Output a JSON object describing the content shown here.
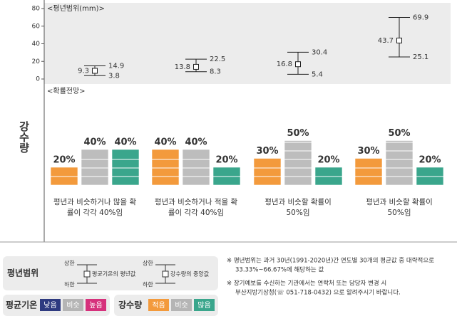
{
  "side_label": "강수량",
  "chart_data": {
    "type": "errorbar",
    "label": "<평년범위(mm)>",
    "ylim": [
      0,
      80
    ],
    "yticks": [
      0,
      20,
      40,
      60,
      80
    ],
    "values": [
      9.3,
      13.8,
      16.8,
      43.7
    ],
    "low": [
      3.8,
      8.3,
      5.4,
      25.1
    ],
    "high": [
      14.9,
      22.5,
      30.4,
      69.9
    ]
  },
  "probability": {
    "label": "<확률전망>",
    "colors": [
      "#f39a3c",
      "#bdbdbd",
      "#3aa68c"
    ],
    "groups": [
      {
        "values": [
          20,
          40,
          40
        ],
        "value_labels": [
          "20%",
          "40%",
          "40%"
        ],
        "caption": [
          "평년과 비슷하거나 많을 확",
          "률이 각각 40%임"
        ]
      },
      {
        "values": [
          40,
          40,
          20
        ],
        "value_labels": [
          "40%",
          "40%",
          "20%"
        ],
        "caption": [
          "평년과 비슷하거나 적을 확",
          "률이 각각 40%임"
        ]
      },
      {
        "values": [
          30,
          50,
          20
        ],
        "value_labels": [
          "30%",
          "50%",
          "20%"
        ],
        "caption": [
          "평년과 비슷할 확률이",
          "50%임"
        ]
      },
      {
        "values": [
          30,
          50,
          20
        ],
        "value_labels": [
          "30%",
          "50%",
          "20%"
        ],
        "caption": [
          "평년과 비슷할 확률이",
          "50%임"
        ]
      }
    ]
  },
  "legend": {
    "range_title": "평년범위",
    "upper": "상한",
    "lower": "하한",
    "temp_desc": "평균기온의 평년값",
    "rain_desc": "강수량의 중앙값",
    "temp_title": "평균기온",
    "temp_chips": [
      {
        "text": "낮음",
        "color": "#2e3a80"
      },
      {
        "text": "비슷",
        "color": "#b5b5b5"
      },
      {
        "text": "높음",
        "color": "#d6317c"
      }
    ],
    "rain_title": "강수량",
    "rain_chips": [
      {
        "text": "적음",
        "color": "#f39a3c"
      },
      {
        "text": "비슷",
        "color": "#b5b5b5"
      },
      {
        "text": "많음",
        "color": "#3aa68c"
      }
    ]
  },
  "notes": [
    "※ 평년범위는 과거 30년(1991-2020년)간 연도별 30개의 평균값 중 대략적으로",
    "33.33%~66.67%에 해당하는 값",
    "※ 장기예보를 수신하는 기관에서는 연락처 또는 담당자 변경 시",
    "부산지방기상청(☏ 051-718-0432) 으로 알려주시기 바랍니다."
  ]
}
